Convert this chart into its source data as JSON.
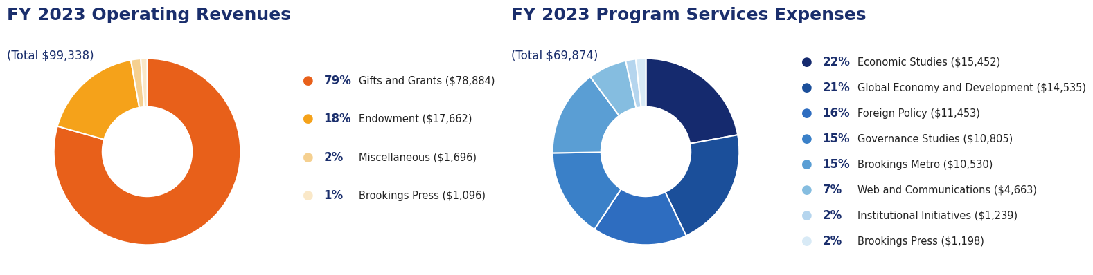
{
  "rev_title": "FY 2023 Operating Revenues",
  "rev_subtitle": "(Total $99,338)",
  "rev_values": [
    78884,
    17662,
    1696,
    1096
  ],
  "rev_labels": [
    "Gifts and Grants ($78,884)",
    "Endowment ($17,662)",
    "Miscellaneous ($1,696)",
    "Brookings Press ($1,096)"
  ],
  "rev_pcts": [
    "79%",
    "18%",
    "2%",
    "1%"
  ],
  "rev_colors": [
    "#E8601A",
    "#F5A21A",
    "#F5D090",
    "#FAE8C8"
  ],
  "exp_title": "FY 2023 Program Services Expenses",
  "exp_subtitle": "(Total $69,874)",
  "exp_values": [
    15452,
    14535,
    11453,
    10805,
    10530,
    4663,
    1239,
    1198
  ],
  "exp_labels": [
    "Economic Studies ($15,452)",
    "Global Economy and Development ($14,535)",
    "Foreign Policy ($11,453)",
    "Governance Studies ($10,805)",
    "Brookings Metro ($10,530)",
    "Web and Communications ($4,663)",
    "Institutional Initiatives ($1,239)",
    "Brookings Press ($1,198)"
  ],
  "exp_pcts": [
    "22%",
    "21%",
    "16%",
    "15%",
    "15%",
    "7%",
    "2%",
    "2%"
  ],
  "exp_colors": [
    "#152A6E",
    "#1B4F9A",
    "#2E6DC0",
    "#3A80C8",
    "#5A9ED4",
    "#85BDE0",
    "#B5D5EE",
    "#D8EAF6"
  ],
  "title_color": "#1A2E6C",
  "label_color": "#222222",
  "pct_color": "#1A2E6C",
  "bg_color": "#FFFFFF",
  "title_fontsize": 18,
  "subtitle_fontsize": 12,
  "legend_fontsize": 10.5,
  "pct_fontsize": 12
}
